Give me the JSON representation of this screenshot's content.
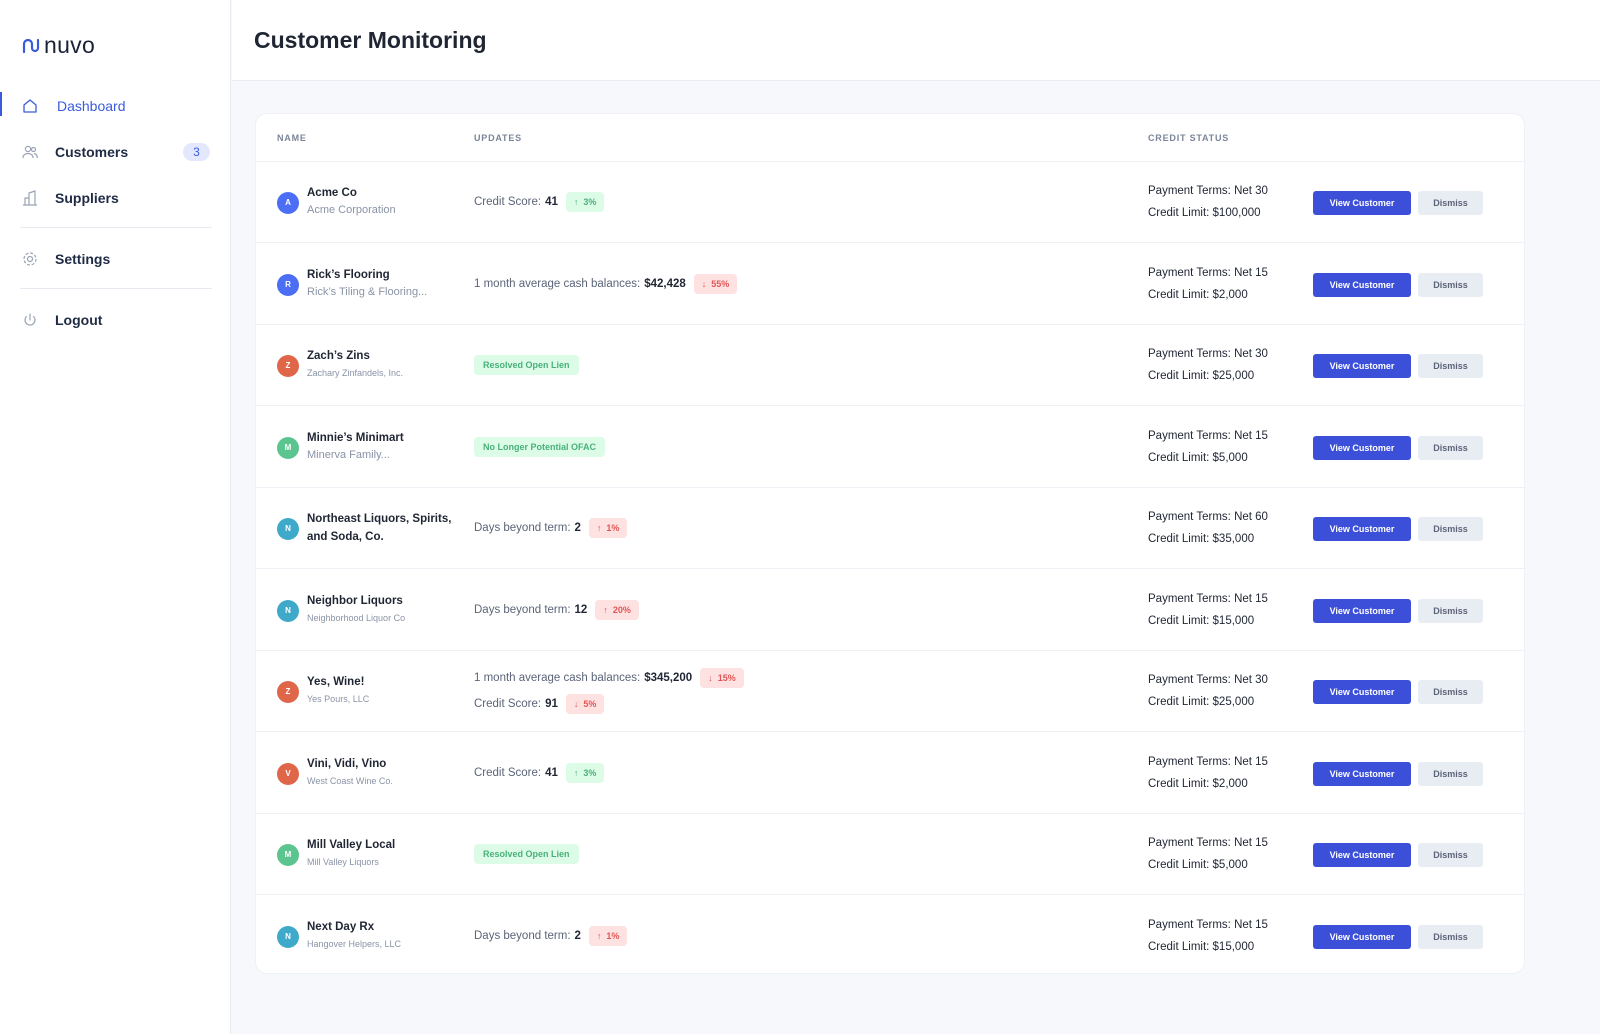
{
  "app": {
    "logo_text": "nuvo",
    "accent": "#3b5bdb"
  },
  "sidebar": {
    "items": [
      {
        "label": "Dashboard",
        "icon": "home-icon",
        "active": true
      },
      {
        "label": "Customers",
        "icon": "users-icon",
        "badge": "3"
      },
      {
        "label": "Suppliers",
        "icon": "building-icon"
      },
      {
        "label": "Settings",
        "icon": "gear-icon"
      },
      {
        "label": "Logout",
        "icon": "power-icon"
      }
    ]
  },
  "header": {
    "title": "Customer Monitoring"
  },
  "table": {
    "columns": {
      "name": "NAME",
      "updates": "UPDATES",
      "credit": "CREDIT STATUS"
    },
    "view_label": "View Customer",
    "dismiss_label": "Dismiss",
    "rows": [
      {
        "initial": "A",
        "color": "#4c6ef5",
        "name": "Acme Co",
        "legal": "Acme Corporation",
        "updates": [
          {
            "label": "Credit Score:",
            "value": "41",
            "dir": "up",
            "change": "3%",
            "tone": "good"
          }
        ],
        "terms": "Payment Terms: Net 30",
        "limit": "Credit Limit: $100,000"
      },
      {
        "initial": "R",
        "color": "#4c6ef5",
        "name": "Rick’s Flooring",
        "legal": "Rick’s Tiling & Flooring...",
        "updates": [
          {
            "label": "1 month average cash balances:",
            "value": "$42,428",
            "dir": "down",
            "change": "55%",
            "tone": "bad"
          }
        ],
        "terms": "Payment Terms: Net 15",
        "limit": "Credit Limit: $2,000"
      },
      {
        "initial": "Z",
        "color": "#e0664a",
        "name": "Zach’s Zins",
        "legal": "Zachary Zinfandels, Inc.",
        "tag": "Resolved Open Lien",
        "terms": "Payment Terms: Net 30",
        "limit": "Credit Limit: $25,000"
      },
      {
        "initial": "M",
        "color": "#5cc58f",
        "name": "Minnie’s Minimart",
        "legal": "Minerva Family...",
        "tag": "No Longer Potential OFAC",
        "terms": "Payment Terms: Net 15",
        "limit": "Credit Limit: $5,000"
      },
      {
        "initial": "N",
        "color": "#3fa9c9",
        "name": "Northeast Liquors, Spirits, and Soda, Co.",
        "legal": "",
        "updates": [
          {
            "label": "Days beyond term:",
            "value": "2",
            "dir": "up",
            "change": "1%",
            "tone": "bad"
          }
        ],
        "terms": "Payment Terms: Net 60",
        "limit": "Credit Limit: $35,000"
      },
      {
        "initial": "N",
        "color": "#3fa9c9",
        "name": "Neighbor Liquors",
        "legal": "Neighborhood Liquor Co",
        "updates": [
          {
            "label": "Days beyond term:",
            "value": "12",
            "dir": "up",
            "change": "20%",
            "tone": "bad"
          }
        ],
        "terms": "Payment Terms: Net 15",
        "limit": "Credit Limit: $15,000"
      },
      {
        "initial": "Z",
        "color": "#e0664a",
        "name": "Yes, Wine!",
        "legal": "Yes Pours, LLC",
        "updates": [
          {
            "label": "1 month average cash balances:",
            "value": "$345,200",
            "dir": "down",
            "change": "15%",
            "tone": "bad"
          },
          {
            "label": "Credit Score:",
            "value": "91",
            "dir": "down",
            "change": "5%",
            "tone": "bad"
          }
        ],
        "terms": "Payment Terms: Net 30",
        "limit": "Credit Limit: $25,000"
      },
      {
        "initial": "V",
        "color": "#e0664a",
        "name": "Vini, Vidi, Vino",
        "legal": "West Coast Wine Co.",
        "updates": [
          {
            "label": "Credit Score:",
            "value": "41",
            "dir": "up",
            "change": "3%",
            "tone": "good"
          }
        ],
        "terms": "Payment Terms: Net 15",
        "limit": "Credit Limit: $2,000"
      },
      {
        "initial": "M",
        "color": "#5cc58f",
        "name": "Mill Valley Local",
        "legal": "Mill Valley Liquors",
        "tag": "Resolved Open Lien",
        "terms": "Payment Terms: Net 15",
        "limit": "Credit Limit: $5,000"
      },
      {
        "initial": "N",
        "color": "#3fa9c9",
        "name": "Next Day Rx",
        "legal": "Hangover Helpers, LLC",
        "updates": [
          {
            "label": "Days beyond term:",
            "value": "2",
            "dir": "up",
            "change": "1%",
            "tone": "bad"
          }
        ],
        "terms": "Payment Terms: Net 15",
        "limit": "Credit Limit: $15,000"
      }
    ]
  }
}
